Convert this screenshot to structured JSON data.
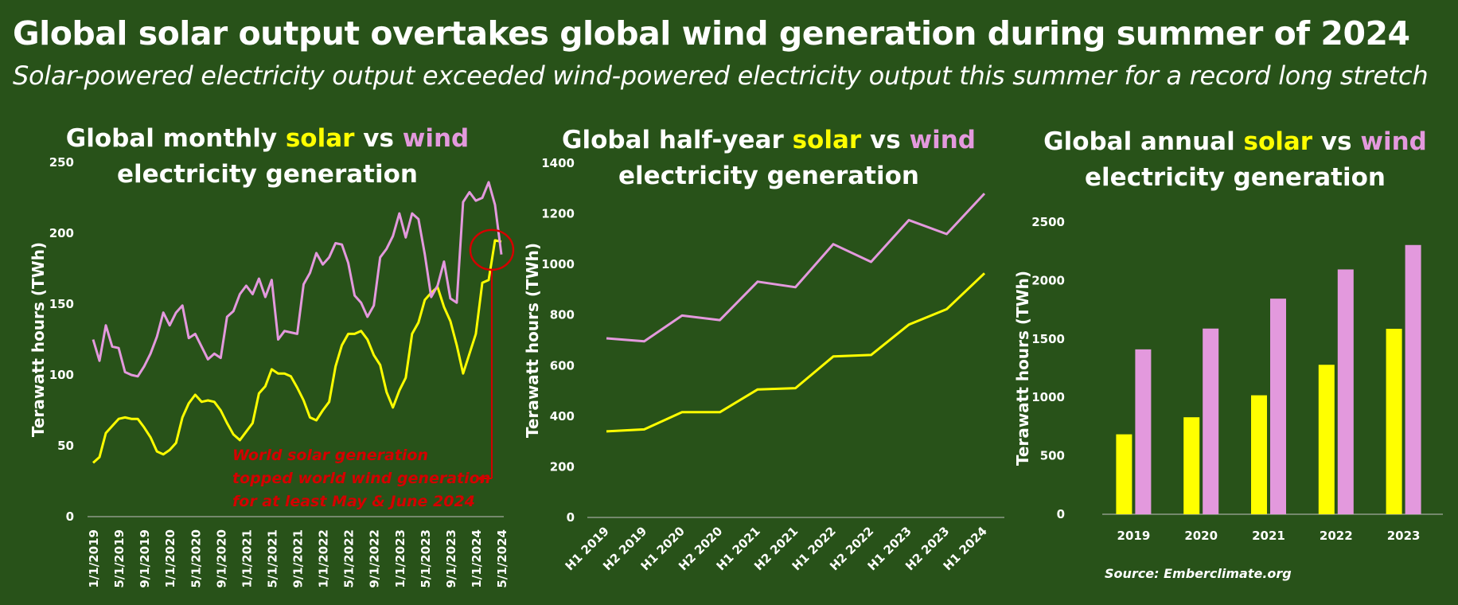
{
  "page": {
    "headline": "Global solar output overtakes global wind generation during summer of 2024",
    "subheadline": "Solar-powered electricity output exceeded wind-powered electricity output this summer for a record long stretch",
    "source": "Source: Emberclimate.org"
  },
  "colors": {
    "background": "#285219",
    "solar": "#ffff00",
    "wind": "#e399dd",
    "annotation": "#d40000",
    "text": "#ffffff"
  },
  "chart_data": [
    {
      "id": "monthly",
      "type": "line",
      "title": {
        "part1": "Global monthly ",
        "solar": "solar",
        "mid": " vs ",
        "wind": "wind",
        "line2": "electricity generation"
      },
      "xlabel": "",
      "ylabel": "Terawatt hours (TWh)",
      "ylim": [
        0,
        250
      ],
      "yticks": [
        0,
        50,
        100,
        150,
        200,
        250
      ],
      "x_tick_labels": [
        "1/1/2019",
        "5/1/2019",
        "9/1/2019",
        "1/1/2020",
        "5/1/2020",
        "9/1/2020",
        "1/1/2021",
        "5/1/2021",
        "9/1/2021",
        "1/1/2022",
        "5/1/2022",
        "9/1/2022",
        "1/1/2023",
        "5/1/2023",
        "9/1/2023",
        "1/1/2024",
        "5/1/2024"
      ],
      "x_tick_index_step": 4,
      "series": [
        {
          "name": "Solar",
          "color": "#ffff00",
          "values": [
            38,
            42,
            59,
            64,
            69,
            70,
            69,
            69,
            63,
            56,
            46,
            44,
            47,
            52,
            70,
            80,
            86,
            81,
            82,
            81,
            75,
            66,
            58,
            54,
            60,
            66,
            87,
            92,
            104,
            101,
            101,
            99,
            91,
            82,
            70,
            68,
            75,
            81,
            106,
            121,
            129,
            129,
            131,
            125,
            114,
            107,
            88,
            77,
            89,
            98,
            129,
            137,
            153,
            158,
            162,
            148,
            138,
            121,
            101,
            115,
            129,
            165,
            167,
            195,
            194
          ]
        },
        {
          "name": "Wind",
          "color": "#e399dd",
          "values": [
            125,
            110,
            135,
            120,
            119,
            102,
            100,
            99,
            106,
            115,
            127,
            144,
            135,
            144,
            149,
            126,
            129,
            120,
            111,
            115,
            112,
            141,
            145,
            157,
            163,
            157,
            168,
            155,
            167,
            125,
            131,
            130,
            129,
            164,
            172,
            186,
            178,
            183,
            193,
            192,
            179,
            156,
            151,
            141,
            149,
            183,
            189,
            198,
            214,
            197,
            214,
            210,
            185,
            155,
            163,
            180,
            154,
            151,
            222,
            229,
            223,
            225,
            236,
            220,
            185
          ]
        }
      ],
      "annotation": {
        "lines": [
          "World solar generation",
          "topped world wind generation",
          "for at least May & June 2024"
        ],
        "circled_point_index": 63
      }
    },
    {
      "id": "half-year",
      "type": "line",
      "title": {
        "part1": "Global half-year ",
        "solar": "solar",
        "mid": " vs ",
        "wind": "wind",
        "line2": "electricity generation"
      },
      "xlabel": "",
      "ylabel": "Terawatt hours (TWh)",
      "ylim": [
        0,
        1400
      ],
      "yticks": [
        0,
        200,
        400,
        600,
        800,
        1000,
        1200,
        1400
      ],
      "categories": [
        "H1 2019",
        "H2 2019",
        "H1 2020",
        "H2 2020",
        "H1 2021",
        "H2 2021",
        "H1 2022",
        "H2 2022",
        "H1 2023",
        "H2 2023",
        "H1 2024"
      ],
      "series": [
        {
          "name": "Solar",
          "color": "#ffff00",
          "values": [
            340,
            348,
            416,
            416,
            506,
            511,
            636,
            642,
            762,
            823,
            965
          ]
        },
        {
          "name": "Wind",
          "color": "#e399dd",
          "values": [
            708,
            696,
            798,
            780,
            932,
            910,
            1080,
            1010,
            1175,
            1120,
            1280
          ]
        }
      ]
    },
    {
      "id": "annual",
      "type": "bar",
      "title": {
        "part1": "Global annual ",
        "solar": "solar",
        "mid": " vs ",
        "wind": "wind",
        "line2": "electricity generation"
      },
      "xlabel": "",
      "ylabel": "Terawatt hours (TWh)",
      "ylim": [
        0,
        2500
      ],
      "yticks": [
        0,
        500,
        1000,
        1500,
        2000,
        2500
      ],
      "categories": [
        "2019",
        "2020",
        "2021",
        "2022",
        "2023"
      ],
      "series": [
        {
          "name": "Solar",
          "color": "#ffff00",
          "values": [
            684,
            830,
            1018,
            1279,
            1587
          ]
        },
        {
          "name": "Wind",
          "color": "#e399dd",
          "values": [
            1411,
            1589,
            1845,
            2095,
            2304
          ]
        }
      ]
    }
  ]
}
